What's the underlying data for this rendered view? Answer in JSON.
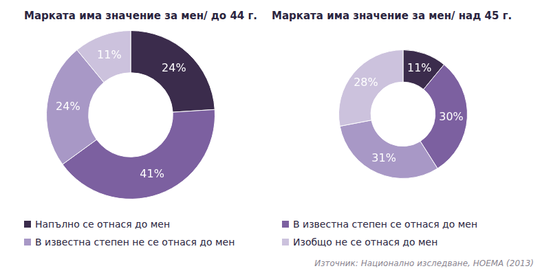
{
  "chart_data": [
    {
      "type": "doughnut",
      "title": "Марката има значение за мен/ до 44 г.",
      "categories": [
        "Напълно се отнася до мен",
        "В известна степен се отнася до мен",
        "В известна степен не се отнася до мен",
        "Изобщо не се отнася до мен"
      ],
      "values": [
        24,
        41,
        24,
        11
      ],
      "value_labels": [
        "24%",
        "41%",
        "24%",
        "11%"
      ],
      "colors": [
        "#3b2c4c",
        "#7c60a0",
        "#a898c6",
        "#ccc2dd"
      ],
      "data_labels": true,
      "legend": "bottom"
    },
    {
      "type": "doughnut",
      "title": "Марката има значение за мен/ над 45 г.",
      "categories": [
        "Напълно се отнася до мен",
        "В известна степен се отнася до мен",
        "В известна степен не се отнася до мен",
        "Изобщо не се отнася до мен"
      ],
      "values": [
        11,
        30,
        31,
        28
      ],
      "value_labels": [
        "11%",
        "30%",
        "31%",
        "28%"
      ],
      "colors": [
        "#3b2c4c",
        "#7c60a0",
        "#a898c6",
        "#ccc2dd"
      ],
      "data_labels": true,
      "legend": "bottom"
    }
  ],
  "source": "Източник: Национално изследване, НОЕМА (2013)"
}
